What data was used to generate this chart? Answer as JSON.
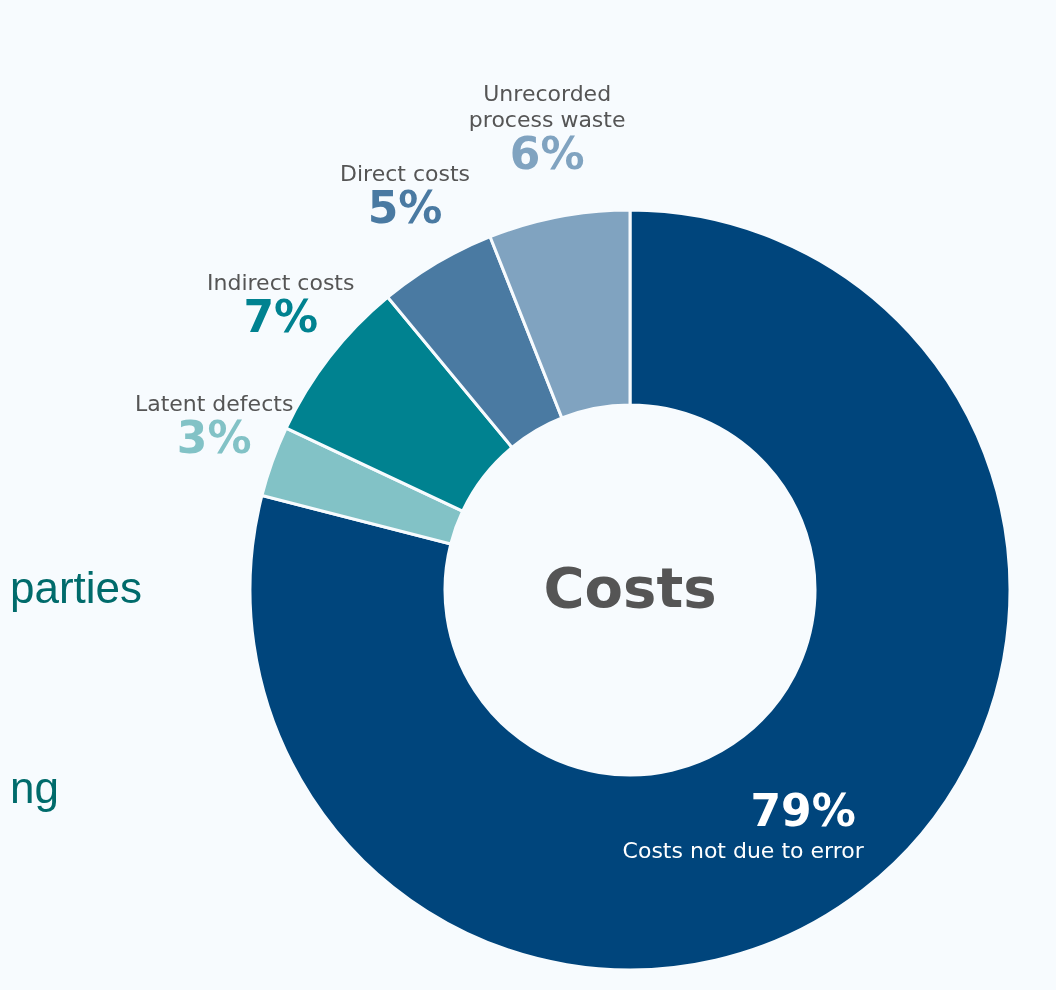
{
  "chart_data": {
    "type": "donut",
    "title": "Costs",
    "categories": [
      "Costs not due to error",
      "Latent defects",
      "Indirect costs",
      "Direct costs",
      "Unrecorded process waste"
    ],
    "values": [
      79,
      3,
      7,
      5,
      6
    ],
    "colors": [
      "#00457c",
      "#82c2c6",
      "#008290",
      "#4a7aa2",
      "#80a3c0"
    ],
    "value_labels": [
      "79%",
      "3%",
      "7%",
      "5%",
      "6%"
    ],
    "annotations": [
      "parties",
      "ng"
    ]
  }
}
